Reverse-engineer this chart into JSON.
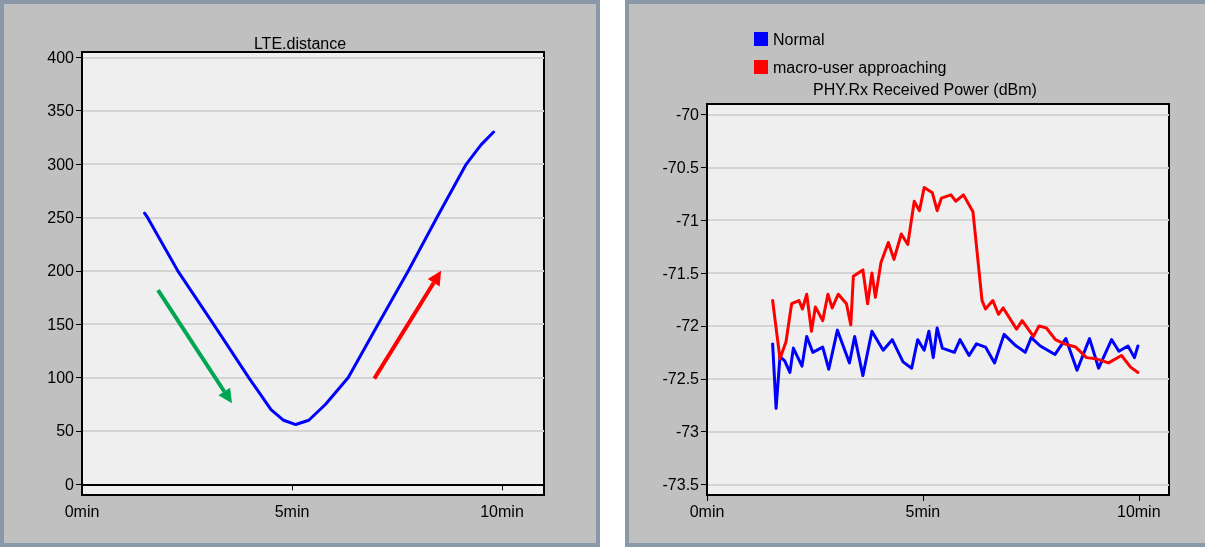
{
  "chart_data": [
    {
      "type": "line",
      "title": "LTE.distance",
      "xlim": [
        0,
        11
      ],
      "ylim": [
        -10,
        405
      ],
      "xticks": [
        {
          "value": 0,
          "label": "0min"
        },
        {
          "value": 5,
          "label": "5min"
        },
        {
          "value": 10,
          "label": "10min"
        }
      ],
      "yticks": [
        0,
        50,
        100,
        150,
        200,
        250,
        300,
        350,
        400
      ],
      "grid": "y",
      "legend": false,
      "series": [
        {
          "color": "#0000ff",
          "x": [
            1.49,
            1.56,
            2.28,
            3.13,
            3.97,
            4.5,
            4.8,
            5.09,
            5.4,
            5.8,
            6.34,
            7.05,
            7.77,
            8.45,
            9.15,
            9.5,
            9.8
          ],
          "values": [
            254,
            250,
            200,
            150,
            100,
            70,
            60,
            56,
            60,
            75,
            100,
            150,
            200,
            250,
            300,
            318,
            330
          ]
        }
      ]
    },
    {
      "type": "line",
      "title": "PHY.Rx Received Power (dBm)",
      "xlim": [
        0,
        10.7
      ],
      "ylim": [
        -73.6,
        -69.9
      ],
      "xticks": [
        {
          "value": 0,
          "label": "0min"
        },
        {
          "value": 5,
          "label": "5min"
        },
        {
          "value": 10,
          "label": "10min"
        }
      ],
      "yticks": [
        -70,
        -70.5,
        -71,
        -71.5,
        -72,
        -72.5,
        -73,
        -73.5
      ],
      "grid": "y",
      "legend": "top left",
      "series": [
        {
          "name": "Normal",
          "color": "#0000ff",
          "x": [
            1.52,
            1.6,
            1.69,
            1.8,
            1.92,
            2.0,
            2.2,
            2.31,
            2.45,
            2.68,
            2.82,
            3.02,
            3.3,
            3.42,
            3.61,
            3.82,
            4.08,
            4.29,
            4.54,
            4.74,
            4.88,
            5.03,
            5.14,
            5.24,
            5.33,
            5.45,
            5.73,
            5.86,
            6.07,
            6.24,
            6.45,
            6.66,
            6.88,
            7.13,
            7.37,
            7.51,
            7.72,
            8.06,
            8.31,
            8.57,
            8.86,
            9.07,
            9.37,
            9.54,
            9.75,
            9.9,
            9.98
          ],
          "values": [
            -72.17,
            -72.78,
            -72.29,
            -72.33,
            -72.44,
            -72.21,
            -72.38,
            -72.1,
            -72.25,
            -72.2,
            -72.41,
            -72.04,
            -72.35,
            -72.1,
            -72.47,
            -72.05,
            -72.23,
            -72.13,
            -72.34,
            -72.4,
            -72.13,
            -72.23,
            -72.05,
            -72.3,
            -72.02,
            -72.21,
            -72.25,
            -72.13,
            -72.28,
            -72.17,
            -72.2,
            -72.35,
            -72.08,
            -72.18,
            -72.25,
            -72.11,
            -72.19,
            -72.27,
            -72.12,
            -72.42,
            -72.12,
            -72.4,
            -72.13,
            -72.24,
            -72.19,
            -72.3,
            -72.19
          ]
        },
        {
          "name": "macro-user approaching",
          "color": "#ff0000",
          "x": [
            1.52,
            1.69,
            1.83,
            1.96,
            2.13,
            2.21,
            2.31,
            2.42,
            2.51,
            2.68,
            2.8,
            2.9,
            3.04,
            3.23,
            3.33,
            3.39,
            3.61,
            3.72,
            3.82,
            3.9,
            4.03,
            4.2,
            4.33,
            4.5,
            4.65,
            4.8,
            4.92,
            5.03,
            5.22,
            5.33,
            5.43,
            5.65,
            5.76,
            5.94,
            6.16,
            6.37,
            6.45,
            6.62,
            6.75,
            6.86,
            7.17,
            7.3,
            7.56,
            7.69,
            7.86,
            8.07,
            8.28,
            8.54,
            8.79,
            9.0,
            9.3,
            9.6,
            9.81,
            9.98
          ],
          "values": [
            -71.76,
            -72.31,
            -72.15,
            -71.79,
            -71.76,
            -71.84,
            -71.7,
            -72.05,
            -71.82,
            -71.95,
            -71.7,
            -71.83,
            -71.7,
            -71.79,
            -71.99,
            -71.53,
            -71.47,
            -71.79,
            -71.5,
            -71.73,
            -71.4,
            -71.21,
            -71.37,
            -71.13,
            -71.23,
            -70.82,
            -70.91,
            -70.69,
            -70.74,
            -70.91,
            -70.79,
            -70.76,
            -70.82,
            -70.76,
            -70.92,
            -71.76,
            -71.84,
            -71.76,
            -71.89,
            -71.83,
            -72.03,
            -71.95,
            -72.1,
            -72.0,
            -72.02,
            -72.13,
            -72.17,
            -72.2,
            -72.3,
            -72.31,
            -72.35,
            -72.28,
            -72.39,
            -72.44
          ]
        }
      ]
    }
  ]
}
